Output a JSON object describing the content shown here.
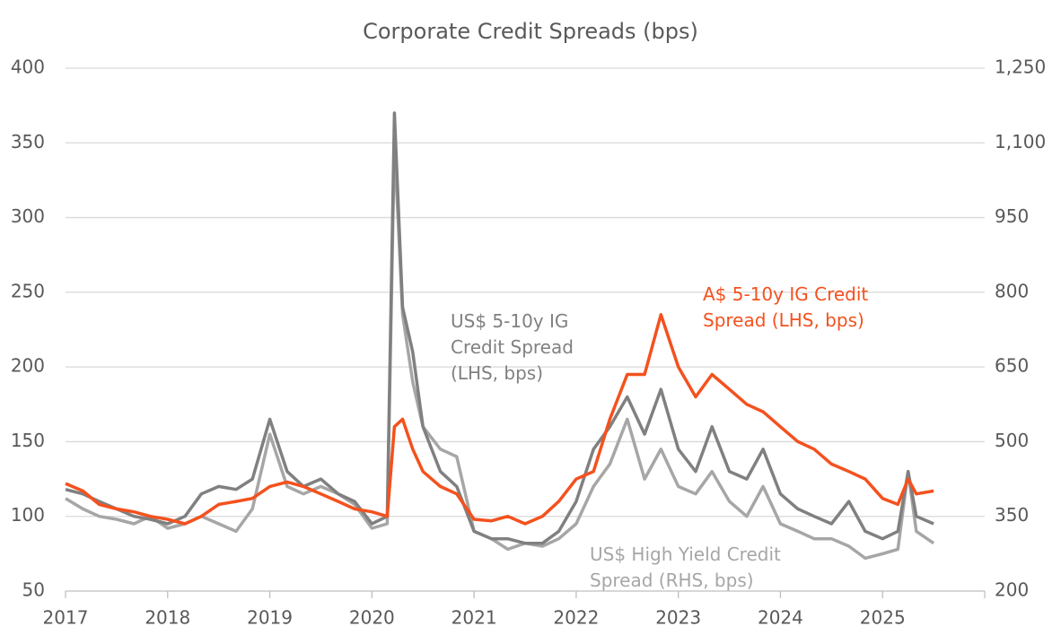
{
  "chart_data": {
    "type": "line",
    "title": "Corporate Credit Spreads (bps)",
    "x": [
      2017.0,
      2017.17,
      2017.33,
      2017.5,
      2017.67,
      2017.83,
      2018.0,
      2018.17,
      2018.33,
      2018.5,
      2018.67,
      2018.83,
      2019.0,
      2019.17,
      2019.33,
      2019.5,
      2019.67,
      2019.83,
      2020.0,
      2020.15,
      2020.22,
      2020.3,
      2020.4,
      2020.5,
      2020.67,
      2020.83,
      2021.0,
      2021.17,
      2021.33,
      2021.5,
      2021.67,
      2021.83,
      2022.0,
      2022.17,
      2022.33,
      2022.5,
      2022.67,
      2022.83,
      2023.0,
      2023.17,
      2023.33,
      2023.5,
      2023.67,
      2023.83,
      2024.0,
      2024.17,
      2024.33,
      2024.5,
      2024.67,
      2024.83,
      2025.0,
      2025.15,
      2025.25,
      2025.33,
      2025.5
    ],
    "series": [
      {
        "name": "A$ 5-10y IG Credit Spread (LHS, bps)",
        "color": "#f4511e",
        "values": [
          122,
          117,
          108,
          105,
          103,
          100,
          98,
          95,
          100,
          108,
          110,
          112,
          120,
          123,
          120,
          115,
          110,
          105,
          103,
          100,
          160,
          165,
          145,
          130,
          120,
          115,
          98,
          97,
          100,
          95,
          100,
          110,
          125,
          130,
          165,
          195,
          195,
          235,
          200,
          180,
          195,
          185,
          175,
          170,
          160,
          150,
          145,
          135,
          130,
          125,
          112,
          108,
          125,
          115,
          117
        ]
      },
      {
        "name": "US$ 5-10y IG Credit Spread (LHS, bps)",
        "color": "#808080",
        "values": [
          118,
          115,
          110,
          105,
          100,
          98,
          95,
          100,
          115,
          120,
          118,
          125,
          165,
          130,
          120,
          125,
          115,
          110,
          95,
          100,
          370,
          240,
          210,
          160,
          130,
          120,
          90,
          85,
          85,
          82,
          82,
          90,
          110,
          145,
          160,
          180,
          155,
          185,
          145,
          130,
          160,
          130,
          125,
          145,
          115,
          105,
          100,
          95,
          110,
          90,
          85,
          90,
          130,
          100,
          95
        ]
      },
      {
        "name": "US$ High Yield Credit Spread (RHS, bps)",
        "color": "#a6a6a6",
        "axis": "y2",
        "values": [
          386,
          365,
          350,
          344,
          335,
          350,
          326,
          335,
          350,
          335,
          320,
          365,
          515,
          410,
          395,
          410,
          395,
          374,
          326,
          335,
          1100,
          755,
          620,
          530,
          485,
          470,
          320,
          305,
          284,
          296,
          290,
          305,
          335,
          410,
          455,
          545,
          425,
          485,
          410,
          395,
          440,
          380,
          350,
          410,
          335,
          320,
          305,
          305,
          290,
          266,
          275,
          284,
          440,
          320,
          296
        ]
      }
    ],
    "xlim": [
      2017,
      2026
    ],
    "xticks": [
      2017,
      2018,
      2019,
      2020,
      2021,
      2022,
      2023,
      2024,
      2025
    ],
    "ylim": [
      50,
      400
    ],
    "yticks": [
      50,
      100,
      150,
      200,
      250,
      300,
      350,
      400
    ],
    "y2lim": [
      200,
      1250
    ],
    "y2ticks": [
      200,
      350,
      500,
      650,
      800,
      950,
      {
        "value": 1100,
        "label": "1,100"
      },
      {
        "value": 1250,
        "label": "1,250"
      }
    ],
    "grid": true
  }
}
